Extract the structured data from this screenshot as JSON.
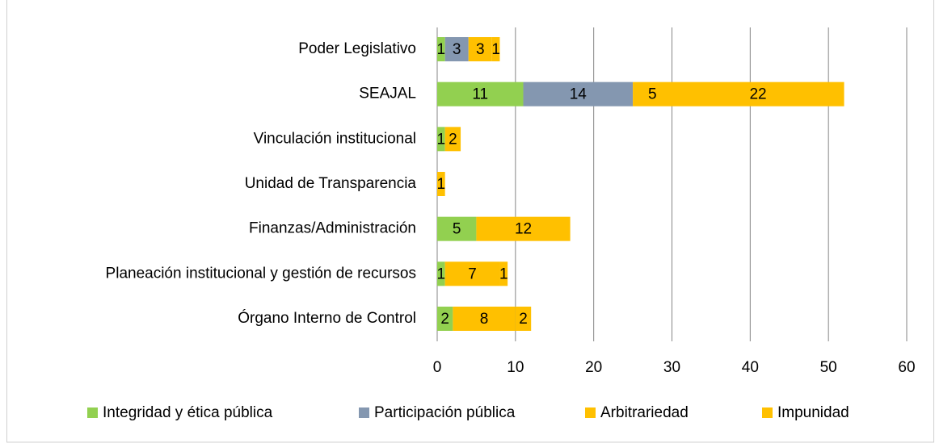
{
  "chart_data": {
    "type": "stacked-bar-horizontal",
    "categories": [
      "Poder Legislativo",
      "SEAJAL",
      "Vinculación institucional",
      "Unidad de Transparencia",
      "Finanzas/Administración",
      "Planeación institucional y gestión de recursos",
      "Órgano Interno de Control"
    ],
    "series": [
      {
        "name": "Integridad y ética pública",
        "color": "#92d050",
        "values": [
          1,
          11,
          1,
          null,
          5,
          1,
          2
        ]
      },
      {
        "name": "Participación pública",
        "color": "#8497b0",
        "values": [
          3,
          14,
          null,
          null,
          null,
          null,
          null
        ]
      },
      {
        "name": "Arbitrariedad",
        "color": "#ffc000",
        "values": [
          3,
          5,
          2,
          1,
          12,
          7,
          8
        ]
      },
      {
        "name": "Impunidad",
        "color": "#ffc000",
        "values": [
          1,
          22,
          null,
          null,
          null,
          1,
          2
        ]
      }
    ],
    "xlim": [
      0,
      60
    ],
    "xticks": [
      0,
      10,
      20,
      30,
      40,
      50,
      60
    ],
    "grid": true,
    "legend": "bottom"
  }
}
